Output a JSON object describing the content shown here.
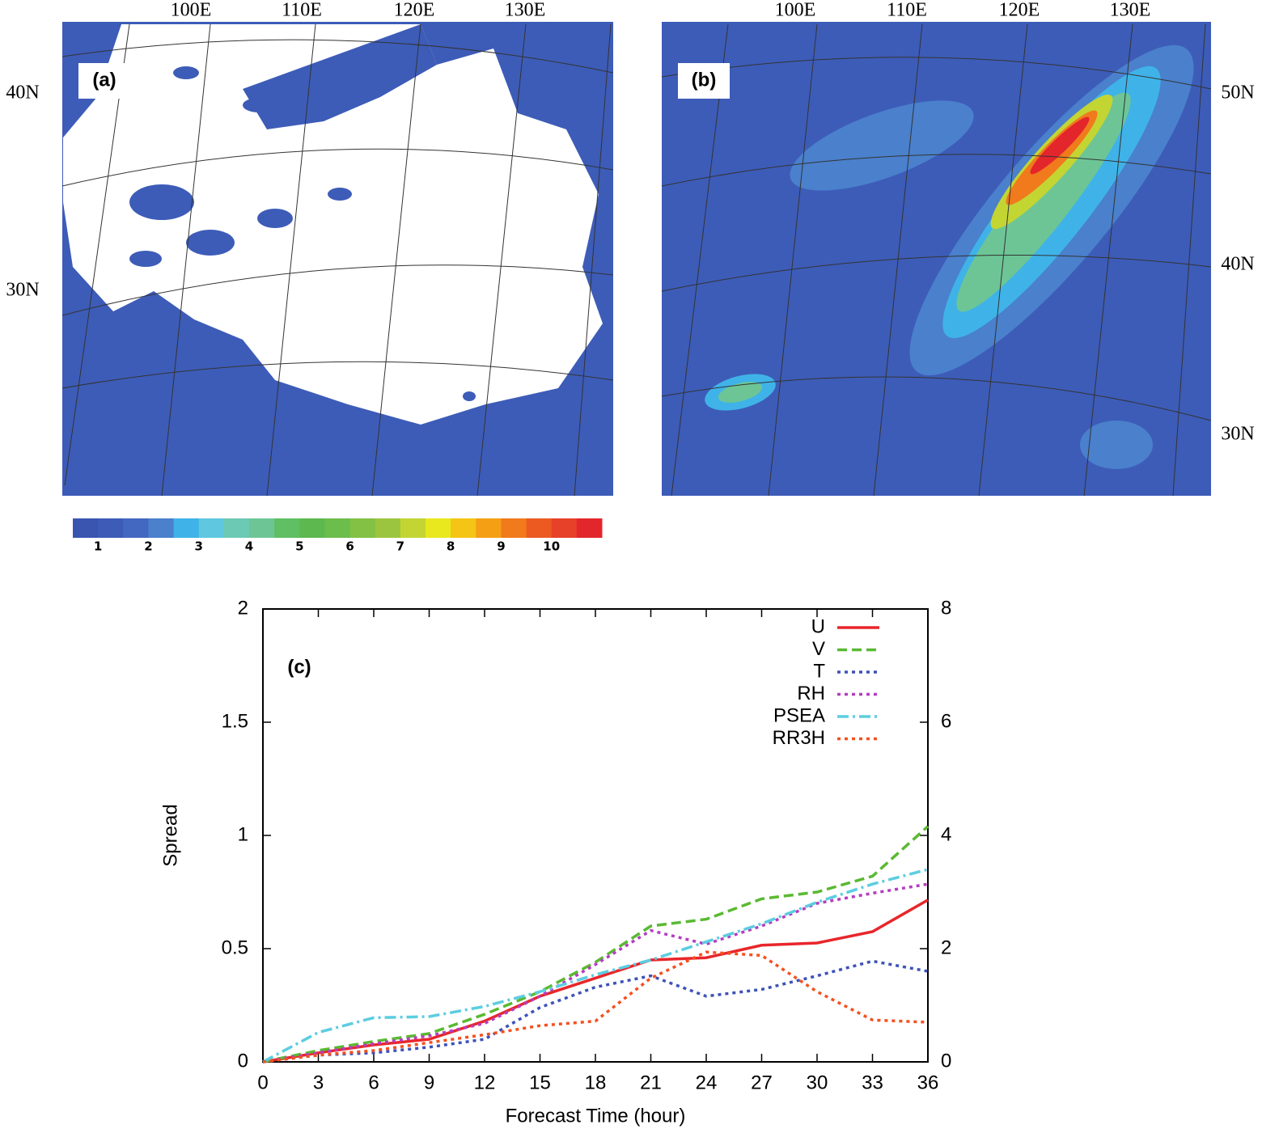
{
  "maps": [
    {
      "label": "(a)",
      "lon_labels": [
        "100E",
        "110E",
        "120E",
        "130E"
      ],
      "lat_labels": [
        "40N",
        "30N"
      ]
    },
    {
      "label": "(b)",
      "lon_labels": [
        "100E",
        "110E",
        "120E",
        "130E"
      ],
      "lat_labels": [
        "50N",
        "40N",
        "30N"
      ]
    }
  ],
  "colorbar": {
    "lim": [
      0.5,
      11
    ],
    "ticks": [
      1,
      2,
      3,
      4,
      5,
      6,
      7,
      8,
      9,
      10
    ],
    "colors": [
      "#3a55b0",
      "#3d5cb8",
      "#4368c2",
      "#4a80cc",
      "#3fb3e8",
      "#5fc7e0",
      "#6cc9b4",
      "#6dc596",
      "#5fbf62",
      "#5db84f",
      "#6bbd4c",
      "#82c144",
      "#9cc53f",
      "#c3d533",
      "#e9e81f",
      "#f5c516",
      "#f5a014",
      "#f07a1c",
      "#ec5a22",
      "#e8412a",
      "#e3262b"
    ]
  },
  "chart_data": {
    "type": "line",
    "label": "(c)",
    "xlabel": "Forecast Time (hour)",
    "ylabel": "Spread",
    "x": [
      0,
      3,
      6,
      9,
      12,
      15,
      18,
      21,
      24,
      27,
      30,
      33,
      36
    ],
    "xlim": [
      0,
      36
    ],
    "xticks": [
      0,
      3,
      6,
      9,
      12,
      15,
      18,
      21,
      24,
      27,
      30,
      33,
      36
    ],
    "ylim": [
      0,
      2
    ],
    "yticks": [
      0,
      0.5,
      1,
      1.5,
      2
    ],
    "y2lim": [
      0,
      8
    ],
    "y2ticks": [
      0,
      2,
      4,
      6,
      8
    ],
    "legend": "upper right",
    "series": [
      {
        "name": "U",
        "color": "#e8262b",
        "dash": "solid",
        "values": [
          0,
          0.04,
          0.075,
          0.1,
          0.18,
          0.29,
          0.37,
          0.45,
          0.46,
          0.515,
          0.525,
          0.575,
          0.715
        ]
      },
      {
        "name": "V",
        "color": "#5ab932",
        "dash": "dashed",
        "values": [
          0,
          0.05,
          0.09,
          0.125,
          0.21,
          0.31,
          0.44,
          0.6,
          0.63,
          0.72,
          0.75,
          0.82,
          1.04
        ]
      },
      {
        "name": "T",
        "color": "#3d52b8",
        "dash": "dotted",
        "values": [
          0,
          0.03,
          0.04,
          0.065,
          0.1,
          0.24,
          0.33,
          0.38,
          0.29,
          0.32,
          0.38,
          0.445,
          0.4
        ]
      },
      {
        "name": "RH",
        "color": "#b43ec0",
        "dash": "dotted",
        "values": [
          0,
          0.04,
          0.08,
          0.115,
          0.17,
          0.29,
          0.43,
          0.58,
          0.52,
          0.6,
          0.7,
          0.745,
          0.785
        ]
      },
      {
        "name": "PSEA",
        "color": "#5ccde0",
        "dash": "dashdot",
        "values": [
          0,
          0.13,
          0.195,
          0.2,
          0.245,
          0.31,
          0.385,
          0.45,
          0.53,
          0.61,
          0.705,
          0.785,
          0.85
        ]
      },
      {
        "name": "RR3H",
        "color": "#f5501e",
        "dash": "dotted",
        "values": [
          0,
          0.03,
          0.05,
          0.085,
          0.12,
          0.16,
          0.18,
          0.37,
          0.485,
          0.47,
          0.31,
          0.185,
          0.175
        ]
      }
    ]
  }
}
